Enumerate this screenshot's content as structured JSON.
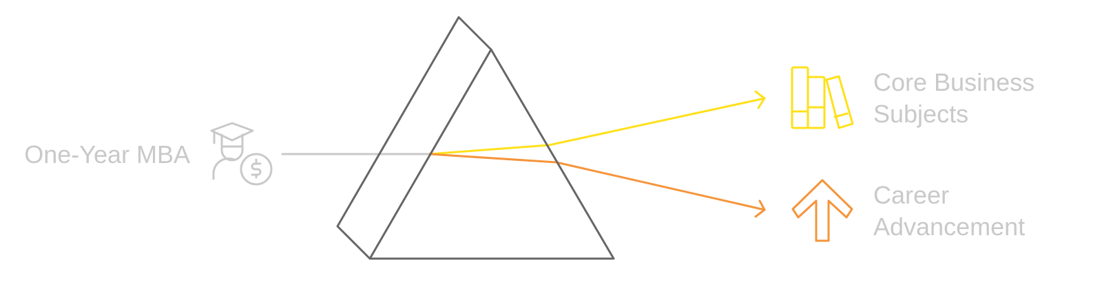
{
  "source": {
    "label": "One-Year MBA"
  },
  "outputs": [
    {
      "label_lines": [
        "Core Business",
        "Subjects"
      ]
    },
    {
      "label_lines": [
        "Career",
        "Advancement"
      ]
    }
  ]
}
